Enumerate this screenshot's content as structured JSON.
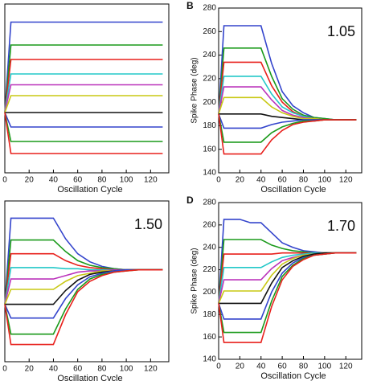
{
  "chart_data": [
    {
      "type": "line",
      "x": [
        0,
        5,
        10,
        20,
        30,
        40,
        50,
        60,
        70,
        80,
        90,
        100,
        110,
        120,
        130
      ],
      "xlim": [
        0,
        135
      ],
      "ylim": [
        140,
        280
      ],
      "xticks": [
        0,
        20,
        40,
        60,
        80,
        100,
        120
      ],
      "xlabel": "Oscillation Cycle",
      "series": [
        {
          "color": "#3344cc",
          "values": [
            190,
            265,
            265,
            265,
            265,
            265,
            265,
            265,
            265,
            265,
            265,
            265,
            265,
            265,
            265
          ]
        },
        {
          "color": "#1a9a1a",
          "values": [
            190,
            246,
            246,
            246,
            246,
            246,
            246,
            246,
            246,
            246,
            246,
            246,
            246,
            246,
            246
          ]
        },
        {
          "color": "#e8201c",
          "values": [
            190,
            234,
            234,
            234,
            234,
            234,
            234,
            234,
            234,
            234,
            234,
            234,
            234,
            234,
            234
          ]
        },
        {
          "color": "#22c8c8",
          "values": [
            190,
            222,
            222,
            222,
            222,
            222,
            222,
            222,
            222,
            222,
            222,
            222,
            222,
            222,
            222
          ]
        },
        {
          "color": "#bb33bb",
          "values": [
            190,
            213,
            213,
            213,
            213,
            213,
            213,
            213,
            213,
            213,
            213,
            213,
            213,
            213,
            213
          ]
        },
        {
          "color": "#c8c814",
          "values": [
            190,
            204,
            204,
            204,
            204,
            204,
            204,
            204,
            204,
            204,
            204,
            204,
            204,
            204,
            204
          ]
        },
        {
          "color": "#111111",
          "values": [
            190,
            190,
            190,
            190,
            190,
            190,
            190,
            190,
            190,
            190,
            190,
            190,
            190,
            190,
            190
          ]
        },
        {
          "color": "#3344cc",
          "values": [
            190,
            178,
            178,
            178,
            178,
            178,
            178,
            178,
            178,
            178,
            178,
            178,
            178,
            178,
            178
          ]
        },
        {
          "color": "#1a9a1a",
          "values": [
            190,
            166,
            166,
            166,
            166,
            166,
            166,
            166,
            166,
            166,
            166,
            166,
            166,
            166,
            166
          ]
        },
        {
          "color": "#e8201c",
          "values": [
            190,
            156,
            156,
            156,
            156,
            156,
            156,
            156,
            156,
            156,
            156,
            156,
            156,
            156,
            156
          ]
        }
      ]
    },
    {
      "type": "line",
      "panel_label": "B",
      "annotation": "1.05",
      "x": [
        0,
        5,
        10,
        20,
        30,
        40,
        50,
        60,
        70,
        80,
        90,
        100,
        110,
        120,
        130
      ],
      "xlim": [
        0,
        135
      ],
      "ylim": [
        140,
        280
      ],
      "xticks": [
        0,
        20,
        40,
        60,
        80,
        100,
        120
      ],
      "yticks": [
        140,
        160,
        180,
        200,
        220,
        240,
        260,
        280
      ],
      "xlabel": "Oscillation Cycle",
      "ylabel": "Spike Phase (deg)",
      "series": [
        {
          "color": "#3344cc",
          "values": [
            190,
            265,
            265,
            265,
            265,
            265,
            233,
            209,
            197,
            191,
            187,
            186,
            185,
            185,
            185
          ]
        },
        {
          "color": "#1a9a1a",
          "values": [
            190,
            246,
            246,
            246,
            246,
            246,
            222,
            203,
            194,
            189,
            187,
            186,
            185,
            185,
            185
          ]
        },
        {
          "color": "#e8201c",
          "values": [
            190,
            234,
            234,
            234,
            234,
            234,
            214,
            200,
            192,
            188,
            186,
            185,
            185,
            185,
            185
          ]
        },
        {
          "color": "#22c8c8",
          "values": [
            190,
            222,
            222,
            222,
            222,
            222,
            207,
            196,
            191,
            188,
            186,
            185,
            185,
            185,
            185
          ]
        },
        {
          "color": "#bb33bb",
          "values": [
            190,
            213,
            213,
            213,
            213,
            213,
            202,
            193,
            189,
            187,
            186,
            185,
            185,
            185,
            185
          ]
        },
        {
          "color": "#c8c814",
          "values": [
            190,
            204,
            204,
            204,
            204,
            204,
            196,
            191,
            188,
            186,
            186,
            185,
            185,
            185,
            185
          ]
        },
        {
          "color": "#111111",
          "values": [
            190,
            190,
            190,
            190,
            190,
            190,
            188,
            187,
            186,
            185,
            185,
            185,
            185,
            185,
            185
          ]
        },
        {
          "color": "#3344cc",
          "values": [
            190,
            178,
            178,
            178,
            178,
            178,
            181,
            183,
            184,
            185,
            185,
            185,
            185,
            185,
            185
          ]
        },
        {
          "color": "#1a9a1a",
          "values": [
            190,
            166,
            166,
            166,
            166,
            166,
            174,
            179,
            182,
            184,
            184,
            185,
            185,
            185,
            185
          ]
        },
        {
          "color": "#e8201c",
          "values": [
            190,
            156,
            156,
            156,
            156,
            156,
            168,
            176,
            181,
            183,
            184,
            185,
            185,
            185,
            185
          ]
        }
      ]
    },
    {
      "type": "line",
      "annotation": "1.50",
      "x": [
        0,
        5,
        10,
        20,
        30,
        40,
        50,
        60,
        70,
        80,
        90,
        100,
        110,
        120,
        130
      ],
      "xlim": [
        0,
        135
      ],
      "ylim": [
        140,
        280
      ],
      "xticks": [
        0,
        20,
        40,
        60,
        80,
        100,
        120
      ],
      "xlabel": "Oscillation Cycle",
      "series": [
        {
          "color": "#3344cc",
          "values": [
            190,
            265,
            265,
            265,
            265,
            265,
            247,
            234,
            227,
            223,
            221,
            220,
            220,
            220,
            220
          ]
        },
        {
          "color": "#1a9a1a",
          "values": [
            190,
            246,
            246,
            246,
            246,
            246,
            236,
            228,
            224,
            222,
            221,
            220,
            220,
            220,
            220
          ]
        },
        {
          "color": "#e8201c",
          "values": [
            190,
            234,
            234,
            234,
            234,
            234,
            228,
            224,
            222,
            221,
            220,
            220,
            220,
            220,
            220
          ]
        },
        {
          "color": "#22c8c8",
          "values": [
            190,
            222,
            222,
            222,
            222,
            222,
            221,
            221,
            220,
            220,
            220,
            220,
            220,
            220,
            220
          ]
        },
        {
          "color": "#bb33bb",
          "values": [
            190,
            212,
            212,
            212,
            212,
            212,
            215,
            218,
            219,
            219,
            220,
            220,
            220,
            220,
            220
          ]
        },
        {
          "color": "#c8c814",
          "values": [
            190,
            203,
            203,
            203,
            203,
            203,
            210,
            215,
            217,
            219,
            219,
            220,
            220,
            220,
            220
          ]
        },
        {
          "color": "#111111",
          "values": [
            190,
            190,
            190,
            190,
            190,
            190,
            202,
            211,
            216,
            218,
            219,
            220,
            220,
            220,
            220
          ]
        },
        {
          "color": "#3344cc",
          "values": [
            190,
            178,
            178,
            178,
            178,
            178,
            195,
            207,
            214,
            217,
            219,
            220,
            220,
            220,
            220
          ]
        },
        {
          "color": "#1a9a1a",
          "values": [
            190,
            164,
            164,
            164,
            164,
            164,
            186,
            203,
            212,
            216,
            218,
            219,
            220,
            220,
            220
          ]
        },
        {
          "color": "#e8201c",
          "values": [
            190,
            155,
            155,
            155,
            155,
            155,
            181,
            201,
            210,
            215,
            218,
            219,
            220,
            220,
            220
          ]
        }
      ]
    },
    {
      "type": "line",
      "panel_label": "D",
      "annotation": "1.70",
      "x": [
        0,
        5,
        10,
        20,
        30,
        40,
        50,
        60,
        70,
        80,
        90,
        100,
        110,
        120,
        130
      ],
      "xlim": [
        0,
        135
      ],
      "ylim": [
        140,
        280
      ],
      "xticks": [
        0,
        20,
        40,
        60,
        80,
        100,
        120
      ],
      "yticks": [
        140,
        160,
        180,
        200,
        220,
        240,
        260,
        280
      ],
      "xlabel": "Oscillation Cycle",
      "ylabel": "Spike Phase (deg)",
      "series": [
        {
          "color": "#3344cc",
          "values": [
            190,
            265,
            265,
            265,
            262,
            262,
            253,
            244,
            240,
            237,
            236,
            235,
            235,
            235,
            235
          ]
        },
        {
          "color": "#1a9a1a",
          "values": [
            190,
            247,
            247,
            247,
            247,
            247,
            242,
            239,
            237,
            236,
            235,
            235,
            235,
            235,
            235
          ]
        },
        {
          "color": "#e8201c",
          "values": [
            190,
            234,
            234,
            234,
            234,
            234,
            234,
            235,
            235,
            235,
            235,
            235,
            235,
            235,
            235
          ]
        },
        {
          "color": "#22c8c8",
          "values": [
            190,
            222,
            222,
            222,
            222,
            222,
            227,
            231,
            233,
            234,
            235,
            235,
            235,
            235,
            235
          ]
        },
        {
          "color": "#bb33bb",
          "values": [
            190,
            211,
            211,
            211,
            211,
            211,
            221,
            228,
            231,
            233,
            234,
            235,
            235,
            235,
            235
          ]
        },
        {
          "color": "#c8c814",
          "values": [
            190,
            201,
            201,
            201,
            201,
            201,
            215,
            225,
            230,
            233,
            234,
            235,
            235,
            235,
            235
          ]
        },
        {
          "color": "#111111",
          "values": [
            190,
            190,
            190,
            190,
            190,
            190,
            208,
            222,
            228,
            232,
            234,
            235,
            235,
            235,
            235
          ]
        },
        {
          "color": "#3344cc",
          "values": [
            190,
            176,
            176,
            176,
            176,
            176,
            200,
            217,
            226,
            231,
            233,
            234,
            235,
            235,
            235
          ]
        },
        {
          "color": "#1a9a1a",
          "values": [
            190,
            164,
            164,
            164,
            164,
            164,
            192,
            214,
            224,
            230,
            233,
            234,
            235,
            235,
            235
          ]
        },
        {
          "color": "#e8201c",
          "values": [
            190,
            155,
            155,
            155,
            155,
            155,
            187,
            211,
            223,
            229,
            233,
            234,
            235,
            235,
            235
          ]
        }
      ]
    }
  ]
}
